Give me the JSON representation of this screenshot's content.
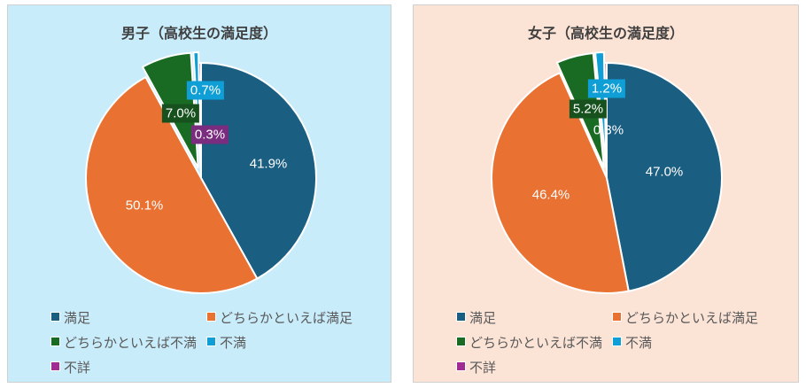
{
  "chart_data": [
    {
      "type": "pie",
      "title": "男子（高校生の満足度）",
      "categories": [
        "満足",
        "どちらかといえば満足",
        "どちらかといえば不満",
        "不満",
        "不詳"
      ],
      "values": [
        41.9,
        50.1,
        7.0,
        0.7,
        0.3
      ],
      "labels": [
        "41.9%",
        "50.1%",
        "7.0%",
        "0.7%",
        "0.3%"
      ],
      "exploded": [
        "どちらかといえば不満",
        "不満"
      ],
      "legend": "bottom",
      "background": "#c9ecfb"
    },
    {
      "type": "pie",
      "title": "女子（高校生の満足度）",
      "categories": [
        "満足",
        "どちらかといえば満足",
        "どちらかといえば不満",
        "不満",
        "不詳"
      ],
      "values": [
        47.0,
        46.4,
        5.2,
        1.2,
        0.3
      ],
      "labels": [
        "47.0%",
        "46.4%",
        "5.2%",
        "1.2%",
        "0.3%"
      ],
      "exploded": [
        "どちらかといえば不満",
        "不満"
      ],
      "legend": "bottom",
      "background": "#fbe3d6"
    }
  ],
  "colors": [
    "#1a5e82",
    "#e97132",
    "#196b24",
    "#0f9ed5",
    "#a02b93"
  ],
  "label_backgrounds": [
    null,
    null,
    "#17521e",
    "#0f9ed5",
    "#7a2c7f"
  ]
}
